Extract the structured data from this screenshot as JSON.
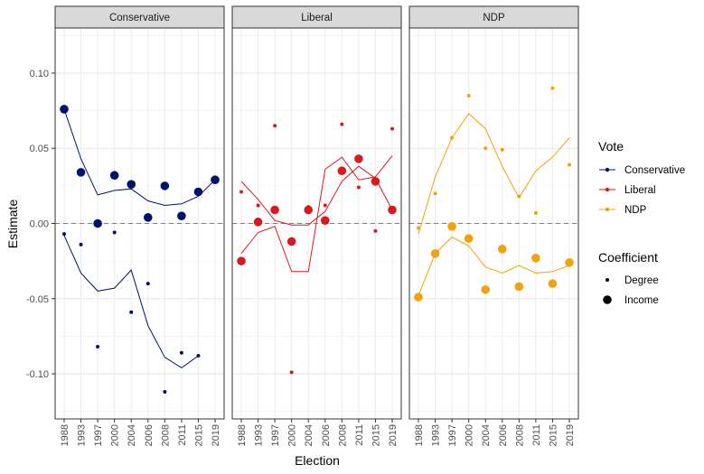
{
  "chart_data": {
    "type": "scatter",
    "xlabel": "Election",
    "ylabel": "Estimate",
    "ylim": [
      -0.13,
      0.13
    ],
    "y_ticks": [
      -0.1,
      -0.05,
      0.0,
      0.05,
      0.1
    ],
    "y_tick_labels": [
      "-0.10",
      "-0.05",
      "0.00",
      "0.05",
      "0.10"
    ],
    "categories": [
      "1988",
      "1993",
      "1997",
      "2000",
      "2004",
      "2006",
      "2008",
      "2011",
      "2015",
      "2019"
    ],
    "reference_line": 0,
    "grid": true,
    "legend_position": "right",
    "panels": [
      {
        "name": "Conservative",
        "color": "#00136b",
        "series": [
          {
            "coefficient": "Income",
            "values": [
              0.076,
              0.034,
              0.0,
              0.032,
              0.026,
              0.004,
              0.025,
              0.005,
              0.021,
              0.029
            ],
            "smooth": [
              0.076,
              0.043,
              0.019,
              0.022,
              0.023,
              0.015,
              0.012,
              0.013,
              0.018,
              0.029
            ]
          },
          {
            "coefficient": "Degree",
            "values": [
              -0.007,
              -0.014,
              -0.082,
              -0.006,
              -0.059,
              -0.04,
              -0.112,
              -0.086,
              -0.088,
              null
            ],
            "smooth": [
              -0.008,
              -0.033,
              -0.045,
              -0.043,
              -0.031,
              -0.068,
              -0.089,
              -0.096,
              -0.088,
              null
            ]
          }
        ]
      },
      {
        "name": "Liberal",
        "color": "#d71920",
        "series": [
          {
            "coefficient": "Income",
            "values": [
              -0.025,
              0.001,
              0.009,
              -0.012,
              0.009,
              0.002,
              0.035,
              0.043,
              0.028,
              0.009
            ],
            "smooth": [
              -0.02,
              -0.006,
              -0.002,
              -0.032,
              -0.032,
              0.036,
              0.044,
              0.029,
              0.031,
              0.045
            ]
          },
          {
            "coefficient": "Degree",
            "values": [
              0.021,
              0.012,
              0.065,
              -0.099,
              0.011,
              0.012,
              0.066,
              0.024,
              -0.005,
              0.063
            ],
            "smooth": [
              0.028,
              0.016,
              0.002,
              -0.001,
              -0.001,
              0.008,
              0.028,
              0.038,
              0.03,
              0.009
            ]
          }
        ]
      },
      {
        "name": "NDP",
        "color": "#f0a30a",
        "series": [
          {
            "coefficient": "Income",
            "values": [
              -0.049,
              -0.02,
              -0.002,
              -0.01,
              -0.044,
              -0.017,
              -0.042,
              -0.023,
              -0.04,
              -0.026
            ],
            "smooth": [
              -0.048,
              -0.02,
              -0.009,
              -0.015,
              -0.029,
              -0.033,
              -0.028,
              -0.033,
              -0.032,
              -0.028
            ]
          },
          {
            "coefficient": "Degree",
            "values": [
              -0.003,
              0.02,
              0.057,
              0.085,
              0.05,
              0.049,
              0.018,
              0.007,
              0.09,
              0.039
            ],
            "smooth": [
              -0.007,
              0.031,
              0.057,
              0.073,
              0.063,
              0.038,
              0.017,
              0.035,
              0.044,
              0.057
            ]
          }
        ]
      }
    ],
    "legend": {
      "vote": {
        "title": "Vote",
        "items": [
          {
            "label": "Conservative",
            "color": "#00136b"
          },
          {
            "label": "Liberal",
            "color": "#d71920"
          },
          {
            "label": "NDP",
            "color": "#f0a30a"
          }
        ]
      },
      "coefficient": {
        "title": "Coefficient",
        "items": [
          {
            "label": "Degree",
            "size": "small"
          },
          {
            "label": "Income",
            "size": "large"
          }
        ]
      }
    }
  }
}
